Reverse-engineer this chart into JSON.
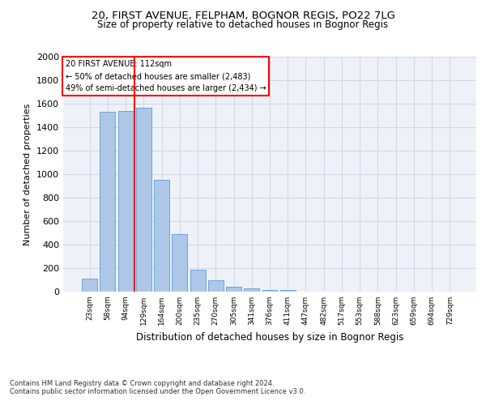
{
  "title_line1": "20, FIRST AVENUE, FELPHAM, BOGNOR REGIS, PO22 7LG",
  "title_line2": "Size of property relative to detached houses in Bognor Regis",
  "xlabel": "Distribution of detached houses by size in Bognor Regis",
  "ylabel": "Number of detached properties",
  "categories": [
    "23sqm",
    "58sqm",
    "94sqm",
    "129sqm",
    "164sqm",
    "200sqm",
    "235sqm",
    "270sqm",
    "305sqm",
    "341sqm",
    "376sqm",
    "411sqm",
    "447sqm",
    "482sqm",
    "517sqm",
    "553sqm",
    "588sqm",
    "623sqm",
    "659sqm",
    "694sqm",
    "729sqm"
  ],
  "values": [
    110,
    1530,
    1540,
    1565,
    950,
    490,
    185,
    100,
    40,
    28,
    15,
    15,
    0,
    0,
    0,
    0,
    0,
    0,
    0,
    0,
    0
  ],
  "bar_color": "#aec6e8",
  "bar_edge_color": "#5a9fd4",
  "grid_color": "#d0d8e8",
  "background_color": "#eef2f8",
  "annotation_text_line1": "20 FIRST AVENUE: 112sqm",
  "annotation_text_line2": "← 50% of detached houses are smaller (2,483)",
  "annotation_text_line3": "49% of semi-detached houses are larger (2,434) →",
  "red_line_x": 2.5,
  "ylim": [
    0,
    2000
  ],
  "yticks": [
    0,
    200,
    400,
    600,
    800,
    1000,
    1200,
    1400,
    1600,
    1800,
    2000
  ],
  "footnote1": "Contains HM Land Registry data © Crown copyright and database right 2024.",
  "footnote2": "Contains public sector information licensed under the Open Government Licence v3.0."
}
